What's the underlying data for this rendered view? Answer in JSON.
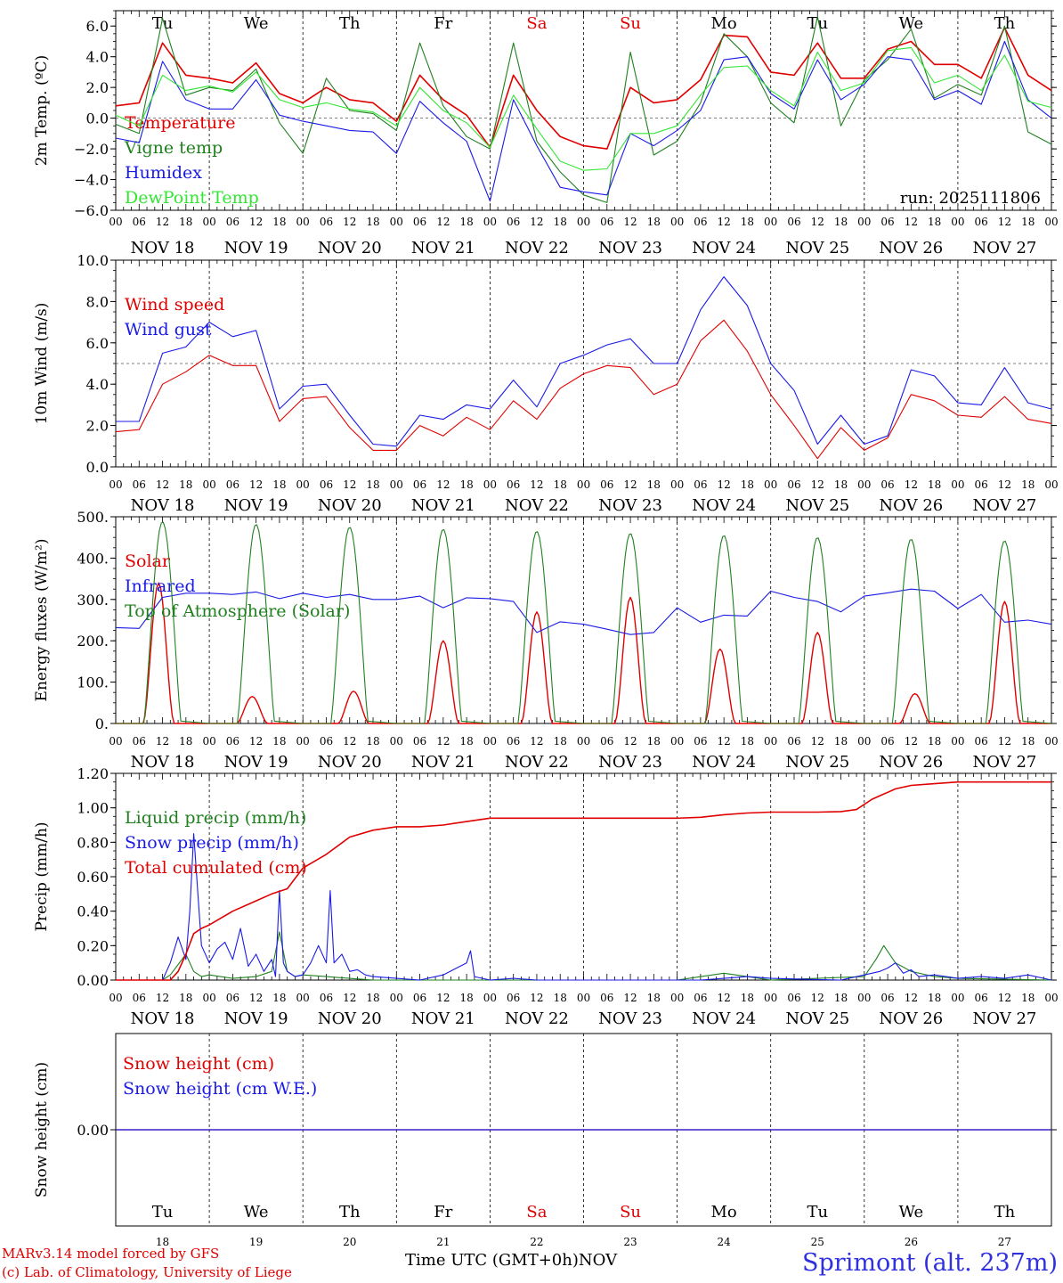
{
  "run_label": "run: 2025111806",
  "footer": {
    "credit_line1": "MARv3.14 model forced by GFS",
    "credit_line2": "(c) Lab. of Climatology, University of Liege",
    "station": "Sprimont (alt. 237m)",
    "xaxis_title": "Time UTC (GMT+0h)",
    "month_label": "NOV"
  },
  "colors": {
    "red": "#e00000",
    "green": "#208020",
    "blue": "#1a1ae6",
    "light_green": "#33e633",
    "weekend": "#e00000",
    "axis": "#000000"
  },
  "days": {
    "weekday_labels": [
      "Tu",
      "We",
      "Th",
      "Fr",
      "Sa",
      "Su",
      "Mo",
      "Tu",
      "We",
      "Th"
    ],
    "weekend_flags": [
      false,
      false,
      false,
      false,
      true,
      true,
      false,
      false,
      false,
      false
    ],
    "date_labels": [
      "NOV 18",
      "NOV 19",
      "NOV 20",
      "NOV 21",
      "NOV 22",
      "NOV 23",
      "NOV 24",
      "NOV 25",
      "NOV 26",
      "NOV 27"
    ],
    "day_numbers": [
      "18",
      "19",
      "20",
      "21",
      "22",
      "23",
      "24",
      "25",
      "26",
      "27"
    ],
    "hour_labels": [
      "00",
      "06",
      "12",
      "18"
    ],
    "final_hour_label": "00"
  },
  "chart_data": [
    {
      "type": "line",
      "panel": "temperature",
      "ylabel": "2m Temp. (ºC)",
      "ylim": [
        -6,
        7
      ],
      "yticks": [
        6,
        4,
        2,
        0,
        -2,
        -4,
        -6
      ],
      "ytick_labels": [
        "6.0",
        "4.0",
        "2.0",
        "0.0",
        "−2.0",
        "−4.0",
        "−6.0"
      ],
      "x_unit": "hours since NOV 18 00 UTC",
      "x": [
        0,
        6,
        12,
        18,
        24,
        30,
        36,
        42,
        48,
        54,
        60,
        66,
        72,
        78,
        84,
        90,
        96,
        102,
        108,
        114,
        120,
        126,
        132,
        138,
        144,
        150,
        156,
        162,
        168,
        174,
        180,
        186,
        192,
        198,
        204,
        210,
        216,
        222,
        228,
        234,
        240
      ],
      "reference_line": 0,
      "series": [
        {
          "name": "Temperature",
          "color": "#e00000",
          "values": [
            0.8,
            1.0,
            4.9,
            2.8,
            2.6,
            2.3,
            3.6,
            1.6,
            1.0,
            2.0,
            1.2,
            1.0,
            -0.2,
            2.8,
            1.2,
            0.2,
            -1.9,
            2.8,
            0.5,
            -1.2,
            -1.8,
            -2.0,
            2.0,
            1.0,
            1.2,
            2.5,
            5.4,
            5.3,
            3.0,
            2.8,
            4.9,
            2.6,
            2.6,
            4.5,
            5.0,
            3.5,
            3.5,
            2.6,
            5.9,
            2.8,
            1.8
          ]
        },
        {
          "name": "Vigne temp",
          "color": "#208020",
          "values": [
            -0.4,
            -1.0,
            6.5,
            1.5,
            2.0,
            1.8,
            3.2,
            -0.3,
            -2.3,
            2.6,
            0.5,
            0.3,
            -0.8,
            4.9,
            0.8,
            -1.2,
            -2.0,
            4.9,
            -1.5,
            -3.5,
            -5.0,
            -5.5,
            4.3,
            -2.4,
            -1.5,
            1.0,
            5.5,
            4.0,
            1.0,
            -0.3,
            6.6,
            -0.5,
            2.5,
            3.8,
            5.8,
            1.3,
            2.2,
            1.5,
            6.0,
            -0.9,
            -1.7
          ]
        },
        {
          "name": "Humidex",
          "color": "#1a1ae6",
          "values": [
            -1.3,
            -1.6,
            3.7,
            1.2,
            0.6,
            0.6,
            2.5,
            0.2,
            -0.2,
            -0.5,
            -0.8,
            -0.9,
            -2.3,
            1.1,
            -0.3,
            -1.5,
            -5.4,
            1.2,
            -1.8,
            -4.5,
            -4.8,
            -5.0,
            -1.0,
            -1.8,
            -0.8,
            0.5,
            3.8,
            4.0,
            1.6,
            0.6,
            3.8,
            1.2,
            2.2,
            4.0,
            3.8,
            1.2,
            1.8,
            0.9,
            5.0,
            1.2,
            0.0
          ]
        },
        {
          "name": "DewPoint Temp",
          "color": "#33e633",
          "values": [
            0.2,
            -0.5,
            2.8,
            1.8,
            2.1,
            1.7,
            3.0,
            1.2,
            0.7,
            1.0,
            0.6,
            0.4,
            -0.5,
            2.0,
            0.5,
            -0.3,
            -1.9,
            1.5,
            -0.7,
            -2.8,
            -3.4,
            -3.3,
            -1.0,
            -1.0,
            -0.5,
            1.5,
            3.3,
            3.4,
            1.8,
            0.8,
            4.3,
            1.8,
            2.3,
            4.4,
            4.6,
            2.3,
            2.8,
            1.8,
            4.1,
            1.1,
            0.7
          ]
        }
      ]
    },
    {
      "type": "line",
      "panel": "wind",
      "ylabel": "10m Wind (m/s)",
      "ylim": [
        0,
        10
      ],
      "yticks": [
        0,
        2,
        4,
        6,
        8,
        10
      ],
      "ytick_labels": [
        "0.0",
        "2.0",
        "4.0",
        "6.0",
        "8.0",
        "10.0"
      ],
      "x_unit": "hours since NOV 18 00 UTC",
      "x": [
        0,
        6,
        12,
        18,
        24,
        30,
        36,
        42,
        48,
        54,
        60,
        66,
        72,
        78,
        84,
        90,
        96,
        102,
        108,
        114,
        120,
        126,
        132,
        138,
        144,
        150,
        156,
        162,
        168,
        174,
        180,
        186,
        192,
        198,
        204,
        210,
        216,
        222,
        228,
        234,
        240
      ],
      "reference_line": 5,
      "series": [
        {
          "name": "Wind speed",
          "color": "#e00000",
          "values": [
            1.7,
            1.8,
            4.0,
            4.6,
            5.4,
            4.9,
            4.9,
            2.2,
            3.3,
            3.4,
            1.9,
            0.8,
            0.8,
            2.0,
            1.5,
            2.4,
            1.8,
            3.2,
            2.3,
            3.8,
            4.5,
            4.9,
            4.8,
            3.5,
            4.0,
            6.1,
            7.1,
            5.6,
            3.5,
            2.0,
            0.4,
            1.9,
            0.8,
            1.4,
            3.5,
            3.2,
            2.5,
            2.4,
            3.4,
            2.3,
            2.1
          ]
        },
        {
          "name": "Wind gust",
          "color": "#1a1ae6",
          "values": [
            2.2,
            2.2,
            5.5,
            5.8,
            7.0,
            6.3,
            6.6,
            2.8,
            3.9,
            4.0,
            2.5,
            1.1,
            1.0,
            2.5,
            2.3,
            3.0,
            2.8,
            4.2,
            2.9,
            5.0,
            5.4,
            5.9,
            6.2,
            5.0,
            5.0,
            7.6,
            9.2,
            7.8,
            5.0,
            3.7,
            1.1,
            2.5,
            1.1,
            1.5,
            4.7,
            4.4,
            3.1,
            3.0,
            4.8,
            3.1,
            2.8
          ]
        }
      ]
    },
    {
      "type": "line",
      "panel": "energy",
      "ylabel": "Energy fluxes (W/m²)",
      "ylim": [
        0,
        500
      ],
      "yticks": [
        0,
        100,
        200,
        300,
        400,
        500
      ],
      "ytick_labels": [
        "0.",
        "100.",
        "200.",
        "300.",
        "400.",
        "500."
      ],
      "x_unit": "hours since NOV 18 00 UTC",
      "series": [
        {
          "name": "Solar",
          "color": "#e00000",
          "daily_peak_hours": [
            11,
            11,
            13,
            12,
            12,
            12,
            11,
            12,
            13,
            12
          ],
          "daily_peak_values": [
            340,
            65,
            78,
            200,
            270,
            305,
            180,
            220,
            72,
            295
          ]
        },
        {
          "name": "Infrared",
          "color": "#1a1ae6",
          "x": [
            0,
            6,
            12,
            18,
            24,
            30,
            36,
            42,
            48,
            54,
            60,
            66,
            72,
            78,
            84,
            90,
            96,
            102,
            108,
            114,
            120,
            126,
            132,
            138,
            144,
            150,
            156,
            162,
            168,
            174,
            180,
            186,
            192,
            198,
            204,
            210,
            216,
            222,
            228,
            234,
            240
          ],
          "values": [
            232,
            230,
            305,
            315,
            315,
            312,
            318,
            302,
            315,
            305,
            312,
            300,
            300,
            308,
            280,
            304,
            302,
            295,
            220,
            246,
            240,
            228,
            215,
            220,
            280,
            245,
            262,
            260,
            320,
            305,
            295,
            270,
            308,
            316,
            325,
            320,
            278,
            312,
            245,
            250,
            240
          ]
        },
        {
          "name": "Top of Atmosphere (Solar)",
          "color": "#208020",
          "daily_peak_hours": [
            12,
            12,
            12,
            12,
            12,
            12,
            12,
            12,
            12,
            12
          ],
          "daily_peak_values": [
            488,
            482,
            475,
            470,
            465,
            460,
            455,
            450,
            446,
            442
          ]
        }
      ]
    },
    {
      "type": "line",
      "panel": "precip",
      "ylabel": "Precip (mm/h)",
      "ylim": [
        0,
        1.2
      ],
      "yticks": [
        0,
        0.2,
        0.4,
        0.6,
        0.8,
        1.0,
        1.2
      ],
      "ytick_labels": [
        "0.00",
        "0.20",
        "0.40",
        "0.60",
        "0.80",
        "1.00",
        "1.20"
      ],
      "x_unit": "hours since NOV 18 00 UTC",
      "series": [
        {
          "name": "Liquid precip (mm/h)",
          "color": "#208020",
          "x": [
            0,
            12,
            14,
            18,
            20,
            22,
            24,
            30,
            36,
            40,
            42,
            44,
            46,
            48,
            54,
            60,
            66,
            72,
            84,
            96,
            108,
            120,
            132,
            144,
            156,
            162,
            168,
            192,
            195,
            197,
            200,
            204,
            210,
            216,
            240
          ],
          "values": [
            0,
            0,
            0.03,
            0.15,
            0.05,
            0.02,
            0.03,
            0.01,
            0.02,
            0.05,
            0.28,
            0.05,
            0.02,
            0.03,
            0.02,
            0.01,
            0,
            0,
            0,
            0,
            0,
            0,
            0,
            0,
            0.04,
            0.02,
            0,
            0.02,
            0.12,
            0.2,
            0.1,
            0.05,
            0.02,
            0.01,
            0
          ]
        },
        {
          "name": "Snow precip (mm/h)",
          "color": "#1a1ae6",
          "x": [
            0,
            12,
            14,
            16,
            18,
            19,
            20,
            22,
            24,
            26,
            28,
            30,
            32,
            34,
            36,
            38,
            40,
            41,
            42,
            43,
            44,
            46,
            48,
            50,
            52,
            54,
            55,
            56,
            58,
            60,
            62,
            64,
            66,
            72,
            78,
            84,
            90,
            91,
            92,
            96,
            102,
            108,
            120,
            132,
            144,
            150,
            156,
            162,
            168,
            186,
            192,
            196,
            198,
            200,
            202,
            204,
            206,
            210,
            216,
            222,
            228,
            234,
            240
          ],
          "values": [
            0,
            0,
            0.1,
            0.25,
            0.12,
            0.4,
            0.85,
            0.2,
            0.1,
            0.18,
            0.22,
            0.12,
            0.3,
            0.08,
            0.15,
            0.05,
            0.12,
            0.02,
            0.52,
            0.1,
            0.05,
            0.02,
            0.03,
            0.1,
            0.2,
            0.1,
            0.52,
            0.1,
            0.15,
            0.05,
            0.06,
            0.03,
            0.02,
            0.01,
            0,
            0.03,
            0.1,
            0.17,
            0.02,
            0,
            0.01,
            0,
            0,
            0,
            0,
            0,
            0.01,
            0.02,
            0.01,
            0,
            0.03,
            0.05,
            0.07,
            0.1,
            0.04,
            0.06,
            0.02,
            0.03,
            0.01,
            0.02,
            0.01,
            0.03,
            0
          ]
        },
        {
          "name": "Total cumulated (cm)",
          "color": "#e00000",
          "x": [
            0,
            14,
            16,
            18,
            20,
            22,
            24,
            30,
            36,
            40,
            44,
            48,
            54,
            60,
            66,
            72,
            78,
            84,
            90,
            96,
            102,
            108,
            120,
            132,
            144,
            150,
            156,
            162,
            168,
            180,
            186,
            190,
            192,
            194,
            196,
            198,
            200,
            204,
            210,
            216,
            222,
            228,
            234,
            240
          ],
          "values": [
            0,
            0,
            0.05,
            0.15,
            0.27,
            0.3,
            0.32,
            0.4,
            0.46,
            0.5,
            0.53,
            0.65,
            0.73,
            0.83,
            0.87,
            0.89,
            0.89,
            0.9,
            0.92,
            0.94,
            0.94,
            0.94,
            0.94,
            0.94,
            0.94,
            0.945,
            0.96,
            0.97,
            0.975,
            0.975,
            0.978,
            0.99,
            1.02,
            1.05,
            1.07,
            1.09,
            1.11,
            1.13,
            1.14,
            1.15,
            1.15,
            1.15,
            1.15,
            1.15
          ]
        }
      ]
    },
    {
      "type": "line",
      "panel": "snow",
      "ylabel": "Snow height (cm)",
      "ytick_labels": [
        "0.00"
      ],
      "yticks": [
        0
      ],
      "series": [
        {
          "name": "Snow height (cm)",
          "color": "#e00000",
          "values": [
            0,
            0
          ]
        },
        {
          "name": "Snow height (cm W.E.)",
          "color": "#1a1ae6",
          "values": [
            0,
            0
          ]
        }
      ]
    }
  ]
}
